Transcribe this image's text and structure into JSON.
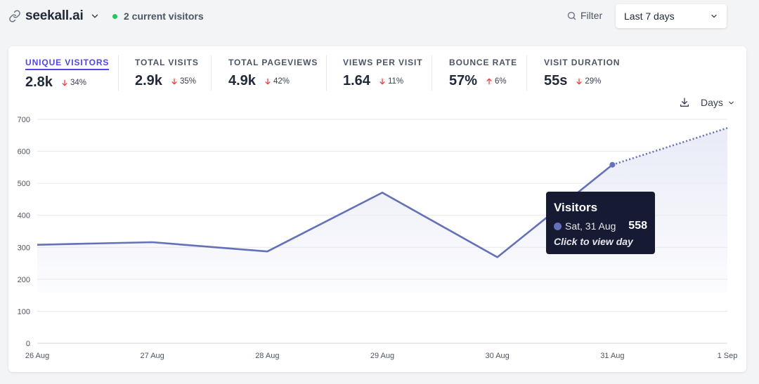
{
  "header": {
    "site_name": "seekall.ai",
    "current_visitors": "2 current visitors",
    "live_dot_color": "#22c55e",
    "filter_label": "Filter",
    "period_label": "Last 7 days"
  },
  "metrics": [
    {
      "label": "UNIQUE VISITORS",
      "value": "2.8k",
      "change": "34%",
      "direction": "down",
      "active": true
    },
    {
      "label": "TOTAL VISITS",
      "value": "2.9k",
      "change": "35%",
      "direction": "down",
      "active": false
    },
    {
      "label": "TOTAL PAGEVIEWS",
      "value": "4.9k",
      "change": "42%",
      "direction": "down",
      "active": false
    },
    {
      "label": "VIEWS PER VISIT",
      "value": "1.64",
      "change": "11%",
      "direction": "down",
      "active": false
    },
    {
      "label": "BOUNCE RATE",
      "value": "57%",
      "change": "6%",
      "direction": "up",
      "active": false
    },
    {
      "label": "VISIT DURATION",
      "value": "55s",
      "change": "29%",
      "direction": "down",
      "active": false
    }
  ],
  "chart_tools": {
    "download_icon": "download-icon",
    "interval_label": "Days"
  },
  "chart_data": {
    "type": "line",
    "categories": [
      "26 Aug",
      "27 Aug",
      "28 Aug",
      "29 Aug",
      "30 Aug",
      "31 Aug",
      "1 Sep"
    ],
    "series": [
      {
        "values": [
          308,
          316,
          287,
          471,
          269,
          558,
          673
        ]
      }
    ],
    "incomplete_last_point": true,
    "ylim": [
      0,
      700
    ],
    "yticks": [
      0,
      100,
      200,
      300,
      400,
      500,
      600,
      700
    ],
    "grid": true,
    "line_color": "#6470b7",
    "area_color": "#e9ebf7"
  },
  "tooltip": {
    "title": "Visitors",
    "date": "Sat, 31 Aug",
    "value": "558",
    "hint": "Click to view day",
    "swatch_color": "#6470b7"
  }
}
